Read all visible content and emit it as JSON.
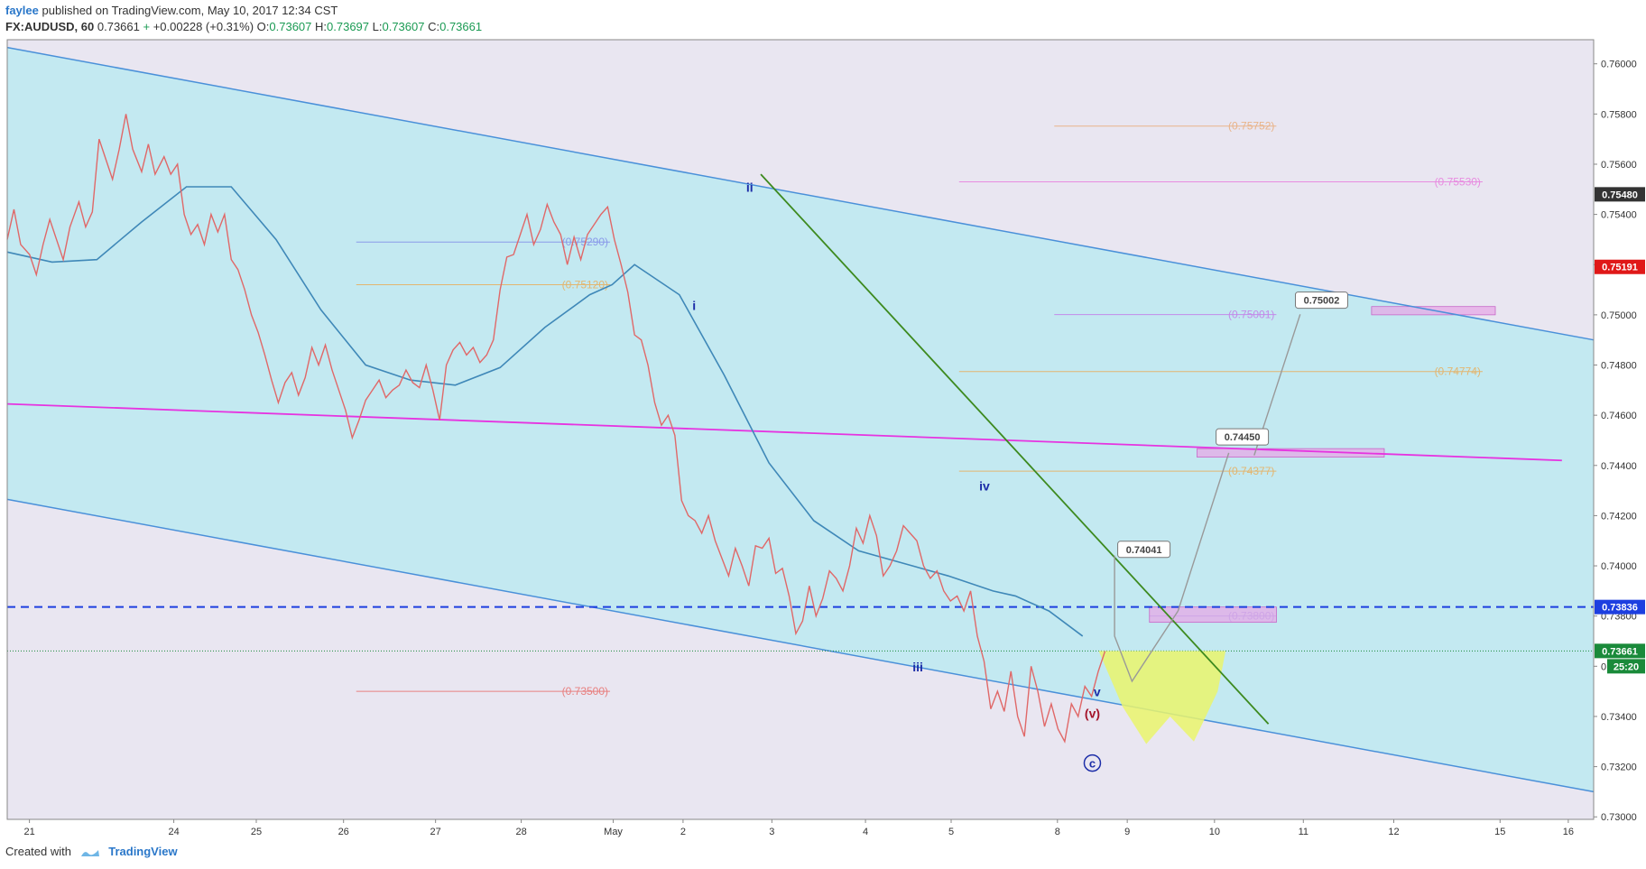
{
  "header": {
    "author": "faylee",
    "published": "published on TradingView.com, May 10, 2017 12:34 CST",
    "symbol": "FX:AUDUSD, 60",
    "last": "0.73661",
    "change": "+0.00228 (+0.31%)",
    "open_label": "O:",
    "open": "0.73607",
    "high_label": "H:",
    "high": "0.73697",
    "low_label": "L:",
    "low": "0.73607",
    "close_label": "C:",
    "close": "0.73661"
  },
  "footer": {
    "created_with": "Created with",
    "brand": "TradingView"
  },
  "colors": {
    "plot_bg": "#e9e6f1",
    "channel_fill": "#c3e9f1",
    "channel_line": "#4a90d9",
    "price_line": "#e06868",
    "ma_line": "#3f88b8",
    "magenta_line": "#e633e0",
    "green_line": "#3d8a1f",
    "dashed_blue": "#1d3fe0",
    "projection_line": "#999999",
    "label_blue": "#1c2da8",
    "label_red": "#a4142a",
    "zone_yellow": "#eaf56c",
    "zone_pink": "#e6a8e6"
  },
  "chart_data": {
    "type": "line",
    "title": "",
    "xlabel": "",
    "ylabel": "",
    "x_ticks": [
      "21",
      "24",
      "25",
      "26",
      "27",
      "28",
      "May",
      "2",
      "3",
      "4",
      "5",
      "8",
      "9",
      "10",
      "11",
      "12",
      "15",
      "16"
    ],
    "y_ticks": [
      "0.73000",
      "0.73200",
      "0.73400",
      "0.73600",
      "0.73800",
      "0.74000",
      "0.74200",
      "0.74400",
      "0.74600",
      "0.74800",
      "0.75000",
      "0.75200",
      "0.75400",
      "0.75600",
      "0.75800",
      "0.76000"
    ],
    "ylim": [
      0.7295,
      0.7613
    ],
    "price_badges": [
      {
        "value": 0.7548,
        "text": "0.75480",
        "color": "#333333"
      },
      {
        "value": 0.75191,
        "text": "0.75191",
        "color": "#e01818"
      },
      {
        "value": 0.73836,
        "text": "0.73836",
        "color": "#1d3fe0"
      },
      {
        "value": 0.73661,
        "text": "0.73661",
        "color": "#1a8a3a"
      }
    ],
    "countdown": "25:20",
    "price_series": [
      [
        0,
        0.753
      ],
      [
        0.3,
        0.7542
      ],
      [
        0.6,
        0.7528
      ],
      [
        1.0,
        0.7524
      ],
      [
        1.3,
        0.7516
      ],
      [
        1.6,
        0.7528
      ],
      [
        1.9,
        0.7538
      ],
      [
        2.2,
        0.753
      ],
      [
        2.5,
        0.7522
      ],
      [
        2.8,
        0.7535
      ],
      [
        3.2,
        0.7545
      ],
      [
        3.5,
        0.7535
      ],
      [
        3.8,
        0.7541
      ],
      [
        4.1,
        0.757
      ],
      [
        4.4,
        0.7562
      ],
      [
        4.7,
        0.7554
      ],
      [
        5.0,
        0.7566
      ],
      [
        5.3,
        0.758
      ],
      [
        5.6,
        0.7566
      ],
      [
        6.0,
        0.7557
      ],
      [
        6.3,
        0.7568
      ],
      [
        6.6,
        0.7556
      ],
      [
        7.0,
        0.7563
      ],
      [
        7.3,
        0.7556
      ],
      [
        7.6,
        0.756
      ],
      [
        7.9,
        0.754
      ],
      [
        8.2,
        0.7532
      ],
      [
        8.5,
        0.7536
      ],
      [
        8.8,
        0.7528
      ],
      [
        9.1,
        0.754
      ],
      [
        9.4,
        0.7533
      ],
      [
        9.7,
        0.754
      ],
      [
        10.0,
        0.7522
      ],
      [
        10.3,
        0.7518
      ],
      [
        10.6,
        0.751
      ],
      [
        10.9,
        0.75
      ],
      [
        11.2,
        0.7493
      ],
      [
        11.5,
        0.7484
      ],
      [
        11.8,
        0.7474
      ],
      [
        12.1,
        0.7465
      ],
      [
        12.4,
        0.7473
      ],
      [
        12.7,
        0.7477
      ],
      [
        13.0,
        0.7468
      ],
      [
        13.3,
        0.7475
      ],
      [
        13.6,
        0.7487
      ],
      [
        13.9,
        0.748
      ],
      [
        14.2,
        0.7488
      ],
      [
        14.5,
        0.7478
      ],
      [
        14.8,
        0.747
      ],
      [
        15.1,
        0.7462
      ],
      [
        15.4,
        0.7451
      ],
      [
        15.7,
        0.7458
      ],
      [
        16.0,
        0.7466
      ],
      [
        16.3,
        0.747
      ],
      [
        16.6,
        0.7474
      ],
      [
        16.9,
        0.7467
      ],
      [
        17.2,
        0.747
      ],
      [
        17.5,
        0.7472
      ],
      [
        17.8,
        0.7478
      ],
      [
        18.1,
        0.7473
      ],
      [
        18.4,
        0.7471
      ],
      [
        18.7,
        0.748
      ],
      [
        19.0,
        0.747
      ],
      [
        19.3,
        0.7458
      ],
      [
        19.6,
        0.748
      ],
      [
        19.9,
        0.7486
      ],
      [
        20.2,
        0.7489
      ],
      [
        20.5,
        0.7484
      ],
      [
        20.8,
        0.7487
      ],
      [
        21.1,
        0.7481
      ],
      [
        21.4,
        0.7484
      ],
      [
        21.7,
        0.749
      ],
      [
        22.0,
        0.751
      ],
      [
        22.3,
        0.7523
      ],
      [
        22.6,
        0.7524
      ],
      [
        22.9,
        0.7532
      ],
      [
        23.2,
        0.754
      ],
      [
        23.5,
        0.7528
      ],
      [
        23.8,
        0.7534
      ],
      [
        24.1,
        0.7544
      ],
      [
        24.4,
        0.7537
      ],
      [
        24.7,
        0.7532
      ],
      [
        25.0,
        0.752
      ],
      [
        25.3,
        0.7531
      ],
      [
        25.6,
        0.7522
      ],
      [
        25.9,
        0.7532
      ],
      [
        26.2,
        0.7536
      ],
      [
        26.5,
        0.754
      ],
      [
        26.8,
        0.7543
      ],
      [
        27.1,
        0.753
      ],
      [
        27.4,
        0.752
      ],
      [
        27.7,
        0.7509
      ],
      [
        28.0,
        0.7492
      ],
      [
        28.3,
        0.749
      ],
      [
        28.6,
        0.748
      ],
      [
        28.9,
        0.7465
      ],
      [
        29.2,
        0.7456
      ],
      [
        29.5,
        0.746
      ],
      [
        29.8,
        0.7452
      ],
      [
        30.1,
        0.7426
      ],
      [
        30.4,
        0.742
      ],
      [
        30.7,
        0.7418
      ],
      [
        31.0,
        0.7413
      ],
      [
        31.3,
        0.742
      ],
      [
        31.6,
        0.741
      ],
      [
        31.9,
        0.7403
      ],
      [
        32.2,
        0.7396
      ],
      [
        32.5,
        0.7407
      ],
      [
        32.8,
        0.74
      ],
      [
        33.1,
        0.7392
      ],
      [
        33.4,
        0.7408
      ],
      [
        33.7,
        0.7407
      ],
      [
        34.0,
        0.7411
      ],
      [
        34.3,
        0.7397
      ],
      [
        34.6,
        0.7399
      ],
      [
        34.9,
        0.7388
      ],
      [
        35.2,
        0.7373
      ],
      [
        35.5,
        0.7378
      ],
      [
        35.8,
        0.7392
      ],
      [
        36.1,
        0.738
      ],
      [
        36.4,
        0.7387
      ],
      [
        36.7,
        0.7398
      ],
      [
        37.0,
        0.7395
      ],
      [
        37.3,
        0.739
      ],
      [
        37.6,
        0.74
      ],
      [
        37.9,
        0.7415
      ],
      [
        38.2,
        0.7409
      ],
      [
        38.5,
        0.742
      ],
      [
        38.8,
        0.7412
      ],
      [
        39.1,
        0.7396
      ],
      [
        39.4,
        0.74
      ],
      [
        39.7,
        0.7406
      ],
      [
        40.0,
        0.7416
      ],
      [
        40.3,
        0.7413
      ],
      [
        40.6,
        0.741
      ],
      [
        40.9,
        0.74
      ],
      [
        41.2,
        0.7395
      ],
      [
        41.5,
        0.7398
      ],
      [
        41.8,
        0.739
      ],
      [
        42.1,
        0.7386
      ],
      [
        42.4,
        0.7388
      ],
      [
        42.7,
        0.7382
      ],
      [
        43.0,
        0.739
      ],
      [
        43.3,
        0.7372
      ],
      [
        43.6,
        0.7362
      ],
      [
        43.9,
        0.7343
      ],
      [
        44.2,
        0.735
      ],
      [
        44.5,
        0.7342
      ],
      [
        44.8,
        0.7358
      ],
      [
        45.1,
        0.734
      ],
      [
        45.4,
        0.7332
      ],
      [
        45.7,
        0.736
      ],
      [
        46.0,
        0.735
      ],
      [
        46.3,
        0.7336
      ],
      [
        46.6,
        0.7345
      ],
      [
        46.9,
        0.7335
      ],
      [
        47.2,
        0.733
      ],
      [
        47.5,
        0.7345
      ],
      [
        47.8,
        0.734
      ],
      [
        48.1,
        0.7352
      ],
      [
        48.4,
        0.7348
      ],
      [
        48.7,
        0.7358
      ],
      [
        49.0,
        0.7366
      ]
    ],
    "ma_series": [
      [
        0,
        0.7525
      ],
      [
        2,
        0.7521
      ],
      [
        4,
        0.7522
      ],
      [
        6,
        0.7537
      ],
      [
        8,
        0.7551
      ],
      [
        10,
        0.7551
      ],
      [
        12,
        0.753
      ],
      [
        14,
        0.7502
      ],
      [
        16,
        0.748
      ],
      [
        18,
        0.7474
      ],
      [
        20,
        0.7472
      ],
      [
        22,
        0.7479
      ],
      [
        24,
        0.7495
      ],
      [
        26,
        0.7508
      ],
      [
        27,
        0.7512
      ],
      [
        28,
        0.752
      ],
      [
        30,
        0.7508
      ],
      [
        32,
        0.7476
      ],
      [
        34,
        0.7441
      ],
      [
        36,
        0.7418
      ],
      [
        38,
        0.7406
      ],
      [
        40,
        0.7401
      ],
      [
        42,
        0.7396
      ],
      [
        44,
        0.739
      ],
      [
        45,
        0.7388
      ],
      [
        46.5,
        0.7382
      ],
      [
        48,
        0.7372
      ]
    ],
    "channel": {
      "upper": [
        [
          0,
          0.76065
        ],
        [
          100,
          0.749
        ]
      ],
      "lower": [
        [
          0,
          0.74265
        ],
        [
          100,
          0.731
        ]
      ]
    },
    "magenta_line": [
      [
        0,
        0.74645
      ],
      [
        98,
        0.7442
      ]
    ],
    "green_line": [
      [
        47.5,
        0.7556
      ],
      [
        79.5,
        0.7337
      ]
    ],
    "dashed_level": 0.73836,
    "current_level": 0.73661,
    "levels": [
      {
        "value": 0.75752,
        "text": "(0.75752)",
        "color": "#e9b48a"
      },
      {
        "value": 0.7553,
        "text": "(0.75530)",
        "color": "#e88ce0"
      },
      {
        "value": 0.7529,
        "text": "(0.75290)",
        "color": "#8a9ae9"
      },
      {
        "value": 0.7512,
        "text": "(0.75120)",
        "color": "#e3b670"
      },
      {
        "value": 0.75001,
        "text": "(0.75001)",
        "color": "#c38ae9"
      },
      {
        "value": 0.74774,
        "text": "(0.74774)",
        "color": "#e3b670"
      },
      {
        "value": 0.74377,
        "text": "(0.74377)",
        "color": "#e3b670"
      },
      {
        "value": 0.738,
        "text": "(0.73800)",
        "color": "#8a9ae9"
      },
      {
        "value": 0.735,
        "text": "(0.73500)",
        "color": "#e88080"
      }
    ],
    "targets": [
      {
        "value": 0.74041,
        "text": "0.74041"
      },
      {
        "value": 0.7445,
        "text": "0.74450"
      },
      {
        "value": 0.75002,
        "text": "0.75002"
      }
    ],
    "wave_labels": [
      {
        "text": "ii",
        "price": 0.7552,
        "color": "#1c2da8"
      },
      {
        "text": "i",
        "price": 0.7502,
        "color": "#1c2da8"
      },
      {
        "text": "iv",
        "price": 0.743,
        "color": "#1c2da8"
      },
      {
        "text": "iii",
        "price": 0.7356,
        "color": "#1c2da8"
      },
      {
        "text": "v",
        "price": 0.7345,
        "color": "#1c2da8"
      },
      {
        "text": "(v)",
        "price": 0.7335,
        "color": "#a4142a"
      },
      {
        "text": "c",
        "price": 0.732,
        "color": "#1c2da8"
      }
    ]
  }
}
